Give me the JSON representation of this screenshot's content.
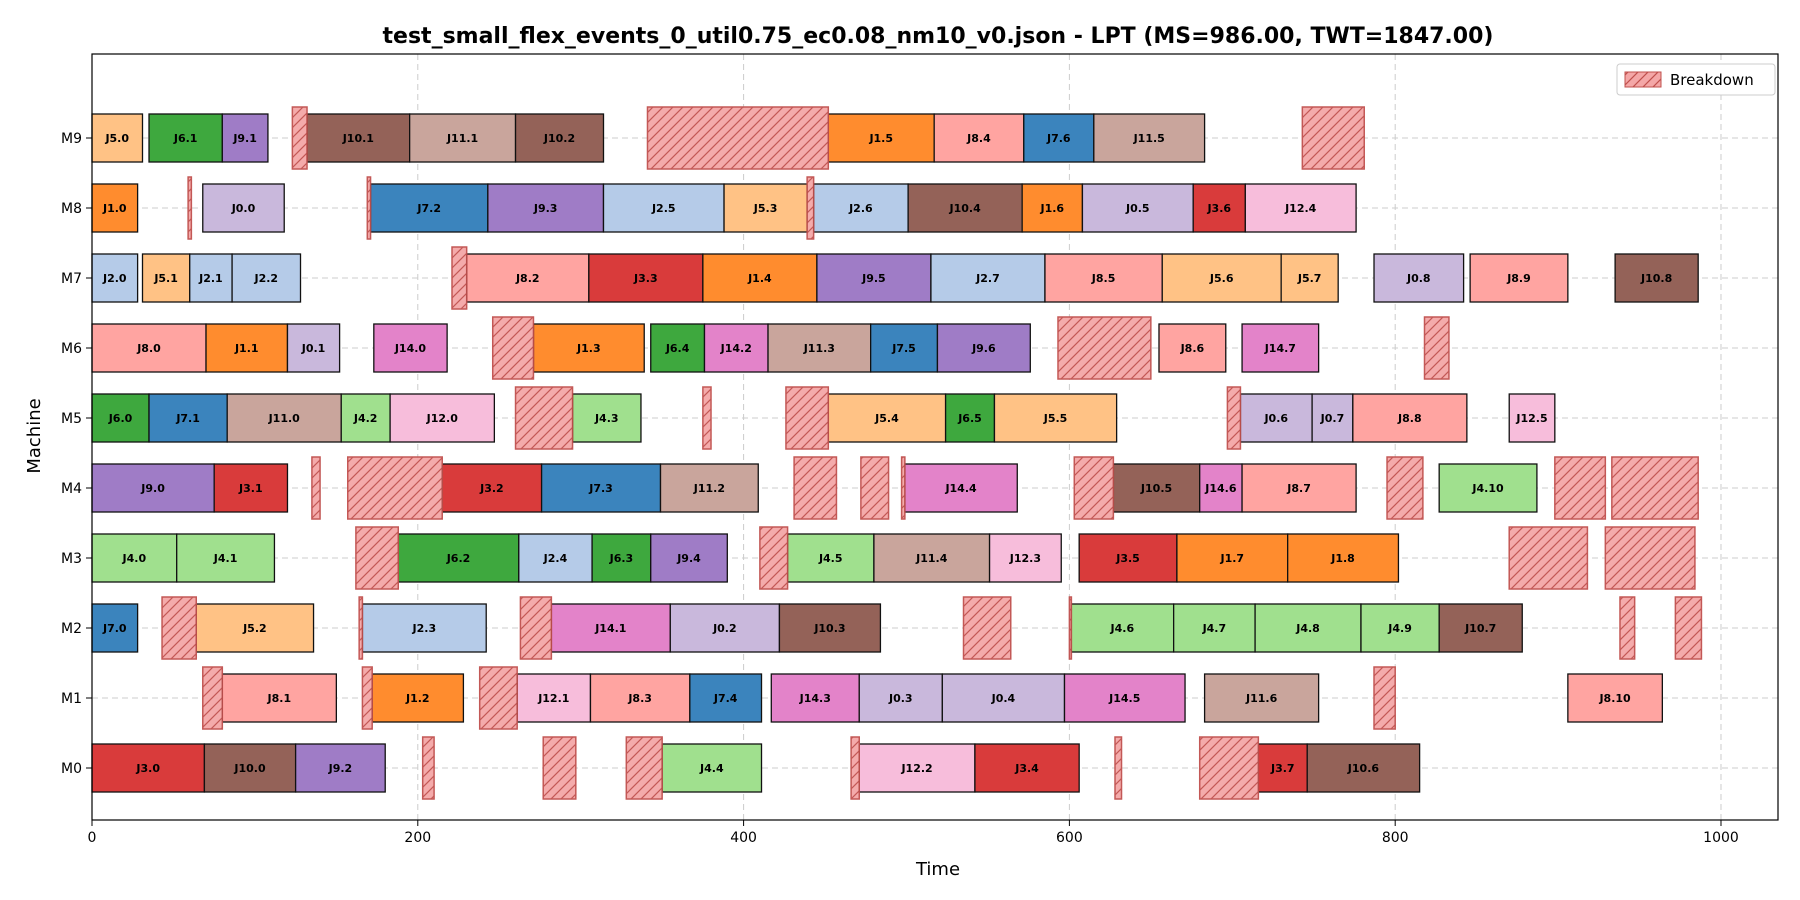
{
  "chart_data": {
    "type": "gantt",
    "title": "test_small_flex_events_0_util0.75_ec0.08_nm10_v0.json - LPT (MS=986.00, TWT=1847.00)",
    "xlabel": "Time",
    "ylabel": "Machine",
    "xlim": [
      0,
      1035
    ],
    "x_ticks": [
      0,
      200,
      400,
      600,
      800,
      1000
    ],
    "machines": [
      "M0",
      "M1",
      "M2",
      "M3",
      "M4",
      "M5",
      "M6",
      "M7",
      "M8",
      "M9"
    ],
    "grid": true,
    "legend": {
      "position": "top-right",
      "entries": [
        {
          "label": "Breakdown",
          "color": "#f4a7a7",
          "hatch": "/",
          "edge": "#c0504d"
        }
      ]
    },
    "job_colors": {
      "J0": "#c9b8dc",
      "J1": "#ff8c2e",
      "J2": "#b5cbe8",
      "J3": "#d93b3b",
      "J4": "#a0e08e",
      "J5": "#ffc285",
      "J6": "#3ea83e",
      "J7": "#3b84bd",
      "J8": "#ffa4a1",
      "J9": "#9f7cc6",
      "J10": "#946258",
      "J11": "#c9a59c",
      "J12": "#f7bddb",
      "J14": "#e383c9"
    },
    "operations": [
      {
        "m": "M0",
        "label": "J3.0",
        "job": "J3",
        "start": 0,
        "end": 69
      },
      {
        "m": "M0",
        "label": "J10.0",
        "job": "J10",
        "start": 69,
        "end": 125
      },
      {
        "m": "M0",
        "label": "J9.2",
        "job": "J9",
        "start": 125,
        "end": 180
      },
      {
        "m": "M0",
        "label": "J4.4",
        "job": "J4",
        "start": 350,
        "end": 411
      },
      {
        "m": "M0",
        "label": "J12.2",
        "job": "J12",
        "start": 471,
        "end": 542
      },
      {
        "m": "M0",
        "label": "J3.4",
        "job": "J3",
        "start": 542,
        "end": 606
      },
      {
        "m": "M0",
        "label": "J3.7",
        "job": "J3",
        "start": 716,
        "end": 746
      },
      {
        "m": "M0",
        "label": "J10.6",
        "job": "J10",
        "start": 746,
        "end": 815
      },
      {
        "m": "M1",
        "label": "J8.1",
        "job": "J8",
        "start": 80,
        "end": 150
      },
      {
        "m": "M1",
        "label": "J1.2",
        "job": "J1",
        "start": 172,
        "end": 228
      },
      {
        "m": "M1",
        "label": "J12.1",
        "job": "J12",
        "start": 261,
        "end": 306
      },
      {
        "m": "M1",
        "label": "J8.3",
        "job": "J8",
        "start": 306,
        "end": 367
      },
      {
        "m": "M1",
        "label": "J7.4",
        "job": "J7",
        "start": 367,
        "end": 411
      },
      {
        "m": "M1",
        "label": "J14.3",
        "job": "J14",
        "start": 417,
        "end": 471
      },
      {
        "m": "M1",
        "label": "J0.3",
        "job": "J0",
        "start": 471,
        "end": 522
      },
      {
        "m": "M1",
        "label": "J0.4",
        "job": "J0",
        "start": 522,
        "end": 597
      },
      {
        "m": "M1",
        "label": "J14.5",
        "job": "J14",
        "start": 597,
        "end": 671
      },
      {
        "m": "M1",
        "label": "J11.6",
        "job": "J11",
        "start": 683,
        "end": 753
      },
      {
        "m": "M1",
        "label": "J8.10",
        "job": "J8",
        "start": 906,
        "end": 964
      },
      {
        "m": "M2",
        "label": "J7.0",
        "job": "J7",
        "start": 0,
        "end": 28
      },
      {
        "m": "M2",
        "label": "J5.2",
        "job": "J5",
        "start": 64,
        "end": 136
      },
      {
        "m": "M2",
        "label": "J2.3",
        "job": "J2",
        "start": 166,
        "end": 242
      },
      {
        "m": "M2",
        "label": "J14.1",
        "job": "J14",
        "start": 282,
        "end": 355
      },
      {
        "m": "M2",
        "label": "J0.2",
        "job": "J0",
        "start": 355,
        "end": 422
      },
      {
        "m": "M2",
        "label": "J10.3",
        "job": "J10",
        "start": 422,
        "end": 484
      },
      {
        "m": "M2",
        "label": "J4.6",
        "job": "J4",
        "start": 601,
        "end": 664
      },
      {
        "m": "M2",
        "label": "J4.7",
        "job": "J4",
        "start": 664,
        "end": 714
      },
      {
        "m": "M2",
        "label": "J4.8",
        "job": "J4",
        "start": 714,
        "end": 779
      },
      {
        "m": "M2",
        "label": "J4.9",
        "job": "J4",
        "start": 779,
        "end": 827
      },
      {
        "m": "M2",
        "label": "J10.7",
        "job": "J10",
        "start": 827,
        "end": 878
      },
      {
        "m": "M3",
        "label": "J4.0",
        "job": "J4",
        "start": 0,
        "end": 52
      },
      {
        "m": "M3",
        "label": "J4.1",
        "job": "J4",
        "start": 52,
        "end": 112
      },
      {
        "m": "M3",
        "label": "J6.2",
        "job": "J6",
        "start": 188,
        "end": 262
      },
      {
        "m": "M3",
        "label": "J2.4",
        "job": "J2",
        "start": 262,
        "end": 307
      },
      {
        "m": "M3",
        "label": "J6.3",
        "job": "J6",
        "start": 307,
        "end": 343
      },
      {
        "m": "M3",
        "label": "J9.4",
        "job": "J9",
        "start": 343,
        "end": 390
      },
      {
        "m": "M3",
        "label": "J4.5",
        "job": "J4",
        "start": 427,
        "end": 480
      },
      {
        "m": "M3",
        "label": "J11.4",
        "job": "J11",
        "start": 480,
        "end": 551
      },
      {
        "m": "M3",
        "label": "J12.3",
        "job": "J12",
        "start": 551,
        "end": 595
      },
      {
        "m": "M3",
        "label": "J3.5",
        "job": "J3",
        "start": 606,
        "end": 666
      },
      {
        "m": "M3",
        "label": "J1.7",
        "job": "J1",
        "start": 666,
        "end": 734
      },
      {
        "m": "M3",
        "label": "J1.8",
        "job": "J1",
        "start": 734,
        "end": 802
      },
      {
        "m": "M4",
        "label": "J9.0",
        "job": "J9",
        "start": 0,
        "end": 75
      },
      {
        "m": "M4",
        "label": "J3.1",
        "job": "J3",
        "start": 75,
        "end": 120
      },
      {
        "m": "M4",
        "label": "J3.2",
        "job": "J3",
        "start": 215,
        "end": 276
      },
      {
        "m": "M4",
        "label": "J7.3",
        "job": "J7",
        "start": 276,
        "end": 349
      },
      {
        "m": "M4",
        "label": "J11.2",
        "job": "J11",
        "start": 349,
        "end": 409
      },
      {
        "m": "M4",
        "label": "J14.4",
        "job": "J14",
        "start": 499,
        "end": 568
      },
      {
        "m": "M4",
        "label": "J10.5",
        "job": "J10",
        "start": 627,
        "end": 680
      },
      {
        "m": "M4",
        "label": "J14.6",
        "job": "J14",
        "start": 680,
        "end": 706
      },
      {
        "m": "M4",
        "label": "J8.7",
        "job": "J8",
        "start": 706,
        "end": 776
      },
      {
        "m": "M4",
        "label": "J4.10",
        "job": "J4",
        "start": 827,
        "end": 887
      },
      {
        "m": "M5",
        "label": "J6.0",
        "job": "J6",
        "start": 0,
        "end": 35
      },
      {
        "m": "M5",
        "label": "J7.1",
        "job": "J7",
        "start": 35,
        "end": 83
      },
      {
        "m": "M5",
        "label": "J11.0",
        "job": "J11",
        "start": 83,
        "end": 153
      },
      {
        "m": "M5",
        "label": "J4.2",
        "job": "J4",
        "start": 153,
        "end": 183
      },
      {
        "m": "M5",
        "label": "J12.0",
        "job": "J12",
        "start": 183,
        "end": 247
      },
      {
        "m": "M5",
        "label": "J4.3",
        "job": "J4",
        "start": 295,
        "end": 337
      },
      {
        "m": "M5",
        "label": "J5.4",
        "job": "J5",
        "start": 452,
        "end": 524
      },
      {
        "m": "M5",
        "label": "J6.5",
        "job": "J6",
        "start": 524,
        "end": 554
      },
      {
        "m": "M5",
        "label": "J5.5",
        "job": "J5",
        "start": 554,
        "end": 629
      },
      {
        "m": "M5",
        "label": "J0.6",
        "job": "J0",
        "start": 705,
        "end": 749
      },
      {
        "m": "M5",
        "label": "J0.7",
        "job": "J0",
        "start": 749,
        "end": 774
      },
      {
        "m": "M5",
        "label": "J8.8",
        "job": "J8",
        "start": 774,
        "end": 844
      },
      {
        "m": "M5",
        "label": "J12.5",
        "job": "J12",
        "start": 870,
        "end": 898
      },
      {
        "m": "M6",
        "label": "J8.0",
        "job": "J8",
        "start": 0,
        "end": 70
      },
      {
        "m": "M6",
        "label": "J1.1",
        "job": "J1",
        "start": 70,
        "end": 120
      },
      {
        "m": "M6",
        "label": "J0.1",
        "job": "J0",
        "start": 120,
        "end": 152
      },
      {
        "m": "M6",
        "label": "J14.0",
        "job": "J14",
        "start": 173,
        "end": 218
      },
      {
        "m": "M6",
        "label": "J1.3",
        "job": "J1",
        "start": 271,
        "end": 339
      },
      {
        "m": "M6",
        "label": "J6.4",
        "job": "J6",
        "start": 343,
        "end": 376
      },
      {
        "m": "M6",
        "label": "J14.2",
        "job": "J14",
        "start": 376,
        "end": 415
      },
      {
        "m": "M6",
        "label": "J11.3",
        "job": "J11",
        "start": 415,
        "end": 478
      },
      {
        "m": "M6",
        "label": "J7.5",
        "job": "J7",
        "start": 478,
        "end": 519
      },
      {
        "m": "M6",
        "label": "J9.6",
        "job": "J9",
        "start": 519,
        "end": 576
      },
      {
        "m": "M6",
        "label": "J8.6",
        "job": "J8",
        "start": 655,
        "end": 696
      },
      {
        "m": "M6",
        "label": "J14.7",
        "job": "J14",
        "start": 706,
        "end": 753
      },
      {
        "m": "M7",
        "label": "J2.0",
        "job": "J2",
        "start": 0,
        "end": 28
      },
      {
        "m": "M7",
        "label": "J5.1",
        "job": "J5",
        "start": 31,
        "end": 60
      },
      {
        "m": "M7",
        "label": "J2.1",
        "job": "J2",
        "start": 60,
        "end": 86
      },
      {
        "m": "M7",
        "label": "J2.2",
        "job": "J2",
        "start": 86,
        "end": 128
      },
      {
        "m": "M7",
        "label": "J8.2",
        "job": "J8",
        "start": 230,
        "end": 305
      },
      {
        "m": "M7",
        "label": "J3.3",
        "job": "J3",
        "start": 305,
        "end": 375
      },
      {
        "m": "M7",
        "label": "J1.4",
        "job": "J1",
        "start": 375,
        "end": 445
      },
      {
        "m": "M7",
        "label": "J9.5",
        "job": "J9",
        "start": 445,
        "end": 515
      },
      {
        "m": "M7",
        "label": "J2.7",
        "job": "J2",
        "start": 515,
        "end": 585
      },
      {
        "m": "M7",
        "label": "J8.5",
        "job": "J8",
        "start": 585,
        "end": 657
      },
      {
        "m": "M7",
        "label": "J5.6",
        "job": "J5",
        "start": 657,
        "end": 730
      },
      {
        "m": "M7",
        "label": "J5.7",
        "job": "J5",
        "start": 730,
        "end": 765
      },
      {
        "m": "M7",
        "label": "J0.8",
        "job": "J0",
        "start": 787,
        "end": 842
      },
      {
        "m": "M7",
        "label": "J8.9",
        "job": "J8",
        "start": 846,
        "end": 906
      },
      {
        "m": "M7",
        "label": "J10.8",
        "job": "J10",
        "start": 935,
        "end": 986
      },
      {
        "m": "M8",
        "label": "J1.0",
        "job": "J1",
        "start": 0,
        "end": 28
      },
      {
        "m": "M8",
        "label": "J0.0",
        "job": "J0",
        "start": 68,
        "end": 118
      },
      {
        "m": "M8",
        "label": "J7.2",
        "job": "J7",
        "start": 171,
        "end": 243
      },
      {
        "m": "M8",
        "label": "J9.3",
        "job": "J9",
        "start": 243,
        "end": 314
      },
      {
        "m": "M8",
        "label": "J2.5",
        "job": "J2",
        "start": 314,
        "end": 388
      },
      {
        "m": "M8",
        "label": "J5.3",
        "job": "J5",
        "start": 388,
        "end": 439
      },
      {
        "m": "M8",
        "label": "J2.6",
        "job": "J2",
        "start": 443,
        "end": 501
      },
      {
        "m": "M8",
        "label": "J10.4",
        "job": "J10",
        "start": 501,
        "end": 571
      },
      {
        "m": "M8",
        "label": "J1.6",
        "job": "J1",
        "start": 571,
        "end": 608
      },
      {
        "m": "M8",
        "label": "J0.5",
        "job": "J0",
        "start": 608,
        "end": 676
      },
      {
        "m": "M8",
        "label": "J3.6",
        "job": "J3",
        "start": 676,
        "end": 708
      },
      {
        "m": "M8",
        "label": "J12.4",
        "job": "J12",
        "start": 708,
        "end": 776
      },
      {
        "m": "M9",
        "label": "J5.0",
        "job": "J5",
        "start": 0,
        "end": 31
      },
      {
        "m": "M9",
        "label": "J6.1",
        "job": "J6",
        "start": 35,
        "end": 80
      },
      {
        "m": "M9",
        "label": "J9.1",
        "job": "J9",
        "start": 80,
        "end": 108
      },
      {
        "m": "M9",
        "label": "J10.1",
        "job": "J10",
        "start": 132,
        "end": 195
      },
      {
        "m": "M9",
        "label": "J11.1",
        "job": "J11",
        "start": 195,
        "end": 260
      },
      {
        "m": "M9",
        "label": "J10.2",
        "job": "J10",
        "start": 260,
        "end": 314
      },
      {
        "m": "M9",
        "label": "J1.5",
        "job": "J1",
        "start": 452,
        "end": 517
      },
      {
        "m": "M9",
        "label": "J8.4",
        "job": "J8",
        "start": 517,
        "end": 572
      },
      {
        "m": "M9",
        "label": "J7.6",
        "job": "J7",
        "start": 572,
        "end": 615
      },
      {
        "m": "M9",
        "label": "J11.5",
        "job": "J11",
        "start": 615,
        "end": 683
      }
    ],
    "breakdowns": [
      {
        "m": "M0",
        "start": 203,
        "end": 210
      },
      {
        "m": "M0",
        "start": 277,
        "end": 297
      },
      {
        "m": "M0",
        "start": 328,
        "end": 350
      },
      {
        "m": "M0",
        "start": 466,
        "end": 471
      },
      {
        "m": "M0",
        "start": 628,
        "end": 632
      },
      {
        "m": "M0",
        "start": 680,
        "end": 716
      },
      {
        "m": "M1",
        "start": 68,
        "end": 80
      },
      {
        "m": "M1",
        "start": 166,
        "end": 172
      },
      {
        "m": "M1",
        "start": 238,
        "end": 261
      },
      {
        "m": "M1",
        "start": 787,
        "end": 800
      },
      {
        "m": "M2",
        "start": 43,
        "end": 64
      },
      {
        "m": "M2",
        "start": 164,
        "end": 166
      },
      {
        "m": "M2",
        "start": 263,
        "end": 282
      },
      {
        "m": "M2",
        "start": 535,
        "end": 564
      },
      {
        "m": "M2",
        "start": 600,
        "end": 601
      },
      {
        "m": "M2",
        "start": 938,
        "end": 947
      },
      {
        "m": "M2",
        "start": 972,
        "end": 988
      },
      {
        "m": "M3",
        "start": 162,
        "end": 188
      },
      {
        "m": "M3",
        "start": 410,
        "end": 427
      },
      {
        "m": "M3",
        "start": 870,
        "end": 918
      },
      {
        "m": "M3",
        "start": 929,
        "end": 984
      },
      {
        "m": "M4",
        "start": 135,
        "end": 140
      },
      {
        "m": "M4",
        "start": 157,
        "end": 215
      },
      {
        "m": "M4",
        "start": 431,
        "end": 457
      },
      {
        "m": "M4",
        "start": 472,
        "end": 489
      },
      {
        "m": "M4",
        "start": 497,
        "end": 499
      },
      {
        "m": "M4",
        "start": 603,
        "end": 627
      },
      {
        "m": "M4",
        "start": 795,
        "end": 817
      },
      {
        "m": "M4",
        "start": 898,
        "end": 929
      },
      {
        "m": "M4",
        "start": 933,
        "end": 986
      },
      {
        "m": "M5",
        "start": 260,
        "end": 295
      },
      {
        "m": "M5",
        "start": 375,
        "end": 380
      },
      {
        "m": "M5",
        "start": 426,
        "end": 452
      },
      {
        "m": "M5",
        "start": 697,
        "end": 705
      },
      {
        "m": "M6",
        "start": 246,
        "end": 271
      },
      {
        "m": "M6",
        "start": 593,
        "end": 650
      },
      {
        "m": "M6",
        "start": 818,
        "end": 833
      },
      {
        "m": "M7",
        "start": 221,
        "end": 230
      },
      {
        "m": "M8",
        "start": 59,
        "end": 61
      },
      {
        "m": "M8",
        "start": 169,
        "end": 171
      },
      {
        "m": "M8",
        "start": 439,
        "end": 443
      },
      {
        "m": "M9",
        "start": 123,
        "end": 132
      },
      {
        "m": "M9",
        "start": 341,
        "end": 452
      },
      {
        "m": "M9",
        "start": 743,
        "end": 781
      }
    ]
  }
}
